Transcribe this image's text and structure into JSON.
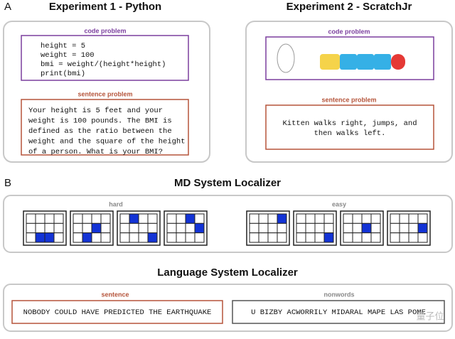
{
  "panel_a": {
    "label": "A",
    "left": {
      "title": "Experiment 1 - Python",
      "code_label": "code problem",
      "code_lines": [
        "height = 5",
        "weight = 100",
        "bmi = weight/(height*height)",
        "print(bmi)"
      ],
      "sentence_label": "sentence problem",
      "sentence_lines": [
        "Your height is 5 feet and your",
        "weight is 100 pounds. The BMI is",
        "defined as the ratio between the",
        "weight and the square of the height",
        "of a person. What is your BMI?"
      ]
    },
    "right": {
      "title": "Experiment 2 - ScratchJr",
      "code_label": "code problem",
      "sentence_label": "sentence problem",
      "sentence_lines": [
        "Kitten walks right, jumps, and",
        "then walks left."
      ]
    }
  },
  "panel_b": {
    "label": "B",
    "md": {
      "title": "MD System Localizer",
      "hard_label": "hard",
      "easy_label": "easy"
    },
    "language": {
      "title": "Language System Localizer",
      "sentence_label": "sentence",
      "sentence": "NOBODY COULD HAVE PREDICTED THE EARTHQUAKE",
      "nonwords_label": "nonwords",
      "nonwords": "U BIZBY ACWORRILY MIDARAL MAPE LAS POME"
    }
  },
  "watermark": "量子位"
}
